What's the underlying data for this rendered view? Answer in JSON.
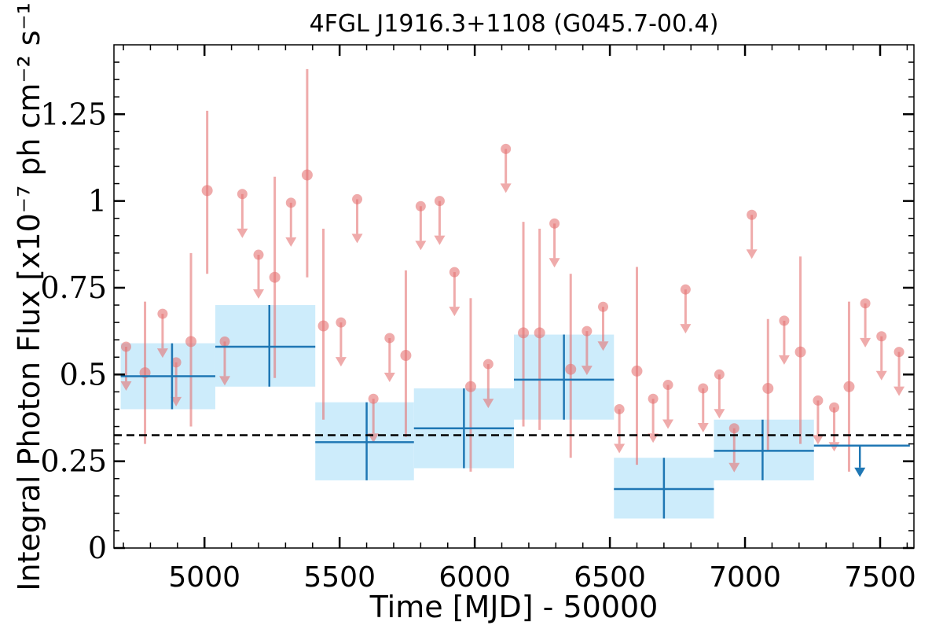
{
  "chart_data": {
    "type": "scatter",
    "title": "4FGL J1916.3+1108 (G045.7-00.4)",
    "xlabel": "Time [MJD] - 50000",
    "ylabel": "Integral Photon Flux [x10⁻⁷ ph cm⁻² s⁻¹]",
    "xlim": [
      4665,
      7625
    ],
    "ylim": [
      0,
      1.45
    ],
    "xticks": [
      5000,
      5500,
      6000,
      6500,
      7000,
      7500
    ],
    "xtick_labels": [
      "5000",
      "5500",
      "6000",
      "6500",
      "7000",
      "7500"
    ],
    "yticks": [
      0,
      0.25,
      0.5,
      0.75,
      1,
      1.25
    ],
    "ytick_labels": [
      "0",
      "0.25",
      "0.5",
      "0.75",
      "1",
      "1.25"
    ],
    "average_flux": 0.325,
    "colors": {
      "monthly": "#e57373",
      "yearly": "#1f77b4",
      "yearly_band": "#cdecfb",
      "average_line": "#000000"
    },
    "series": [
      {
        "name": "",
        "marker": "circle",
        "points": [
          {
            "x": 4780,
            "y": 0.505,
            "ylo": 0.3,
            "yhi": 0.71
          },
          {
            "x": 4950,
            "y": 0.595,
            "ylo": 0.35,
            "yhi": 0.85
          },
          {
            "x": 5010,
            "y": 1.03,
            "ylo": 0.79,
            "yhi": 1.26
          },
          {
            "x": 5260,
            "y": 0.78,
            "ylo": 0.49,
            "yhi": 1.07
          },
          {
            "x": 5380,
            "y": 1.075,
            "ylo": 0.78,
            "yhi": 1.38
          },
          {
            "x": 5440,
            "y": 0.64,
            "ylo": 0.37,
            "yhi": 0.92
          },
          {
            "x": 5745,
            "y": 0.555,
            "ylo": 0.32,
            "yhi": 0.8
          },
          {
            "x": 5985,
            "y": 0.465,
            "ylo": 0.22,
            "yhi": 0.72
          },
          {
            "x": 6180,
            "y": 0.62,
            "ylo": 0.35,
            "yhi": 0.94
          },
          {
            "x": 6240,
            "y": 0.62,
            "ylo": 0.34,
            "yhi": 0.92
          },
          {
            "x": 6355,
            "y": 0.515,
            "ylo": 0.26,
            "yhi": 0.79
          },
          {
            "x": 6600,
            "y": 0.51,
            "ylo": 0.24,
            "yhi": 0.81
          },
          {
            "x": 7085,
            "y": 0.46,
            "ylo": 0.28,
            "yhi": 0.66
          },
          {
            "x": 7205,
            "y": 0.565,
            "ylo": 0.3,
            "yhi": 0.84
          },
          {
            "x": 7385,
            "y": 0.465,
            "ylo": 0.22,
            "yhi": 0.71
          }
        ],
        "upper_limits": [
          {
            "x": 4710,
            "y": 0.58
          },
          {
            "x": 4845,
            "y": 0.675
          },
          {
            "x": 4895,
            "y": 0.535
          },
          {
            "x": 5075,
            "y": 0.595
          },
          {
            "x": 5140,
            "y": 1.02
          },
          {
            "x": 5200,
            "y": 0.845
          },
          {
            "x": 5320,
            "y": 0.995
          },
          {
            "x": 5505,
            "y": 0.65
          },
          {
            "x": 5565,
            "y": 1.005
          },
          {
            "x": 5625,
            "y": 0.43
          },
          {
            "x": 5685,
            "y": 0.605
          },
          {
            "x": 5800,
            "y": 0.985
          },
          {
            "x": 5870,
            "y": 1.0
          },
          {
            "x": 5925,
            "y": 0.795
          },
          {
            "x": 6050,
            "y": 0.53
          },
          {
            "x": 6115,
            "y": 1.15
          },
          {
            "x": 6295,
            "y": 0.935
          },
          {
            "x": 6415,
            "y": 0.625
          },
          {
            "x": 6475,
            "y": 0.695
          },
          {
            "x": 6535,
            "y": 0.4
          },
          {
            "x": 6660,
            "y": 0.43
          },
          {
            "x": 6715,
            "y": 0.47
          },
          {
            "x": 6780,
            "y": 0.745
          },
          {
            "x": 6845,
            "y": 0.46
          },
          {
            "x": 6905,
            "y": 0.5
          },
          {
            "x": 6960,
            "y": 0.345
          },
          {
            "x": 7025,
            "y": 0.96
          },
          {
            "x": 7145,
            "y": 0.655
          },
          {
            "x": 7270,
            "y": 0.425
          },
          {
            "x": 7330,
            "y": 0.405
          },
          {
            "x": 7445,
            "y": 0.705
          },
          {
            "x": 7505,
            "y": 0.61
          },
          {
            "x": 7570,
            "y": 0.565
          }
        ]
      },
      {
        "name": "",
        "marker": "cross",
        "bins": [
          {
            "x0": 4690,
            "x1": 5040,
            "xc": 4880,
            "y": 0.495,
            "ylo": 0.4,
            "yhi": 0.59
          },
          {
            "x0": 5040,
            "x1": 5410,
            "xc": 5240,
            "y": 0.58,
            "ylo": 0.465,
            "yhi": 0.7
          },
          {
            "x0": 5410,
            "x1": 5775,
            "xc": 5600,
            "y": 0.305,
            "ylo": 0.195,
            "yhi": 0.42
          },
          {
            "x0": 5775,
            "x1": 6145,
            "xc": 5960,
            "y": 0.345,
            "ylo": 0.23,
            "yhi": 0.46
          },
          {
            "x0": 6145,
            "x1": 6515,
            "xc": 6330,
            "y": 0.485,
            "ylo": 0.37,
            "yhi": 0.615
          },
          {
            "x0": 6515,
            "x1": 6885,
            "xc": 6700,
            "y": 0.17,
            "ylo": 0.085,
            "yhi": 0.26
          },
          {
            "x0": 6885,
            "x1": 7255,
            "xc": 7065,
            "y": 0.28,
            "ylo": 0.195,
            "yhi": 0.37
          }
        ],
        "upper_limits": [
          {
            "x0": 7255,
            "x1": 7610,
            "xc": 7425,
            "y": 0.295
          }
        ]
      }
    ]
  }
}
